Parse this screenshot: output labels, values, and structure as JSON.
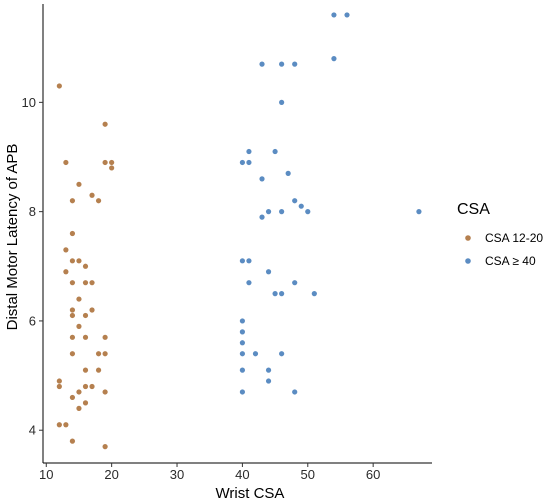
{
  "chart_data": {
    "type": "scatter",
    "title": "",
    "xlabel": "Wrist CSA",
    "ylabel": "Distal Motor Latency of APB",
    "xlim": [
      9.5,
      69
    ],
    "ylim": [
      3.4,
      11.8
    ],
    "x_ticks": [
      10,
      20,
      30,
      40,
      50,
      60
    ],
    "y_ticks": [
      4,
      6,
      8,
      10
    ],
    "grid": false,
    "legend": {
      "title": "CSA",
      "placement": "right",
      "entries": [
        "CSA 12-20",
        "CSA ≥ 40"
      ]
    },
    "series": [
      {
        "name": "CSA 12-20",
        "color": "#b5804f",
        "points": [
          [
            12,
            10.3
          ],
          [
            19,
            9.6
          ],
          [
            13,
            8.9
          ],
          [
            19,
            8.9
          ],
          [
            20,
            8.9
          ],
          [
            20,
            8.8
          ],
          [
            15,
            8.5
          ],
          [
            17,
            8.3
          ],
          [
            14,
            8.2
          ],
          [
            18,
            8.2
          ],
          [
            14,
            7.6
          ],
          [
            13,
            7.3
          ],
          [
            14,
            7.1
          ],
          [
            15,
            7.1
          ],
          [
            16,
            7.0
          ],
          [
            13,
            6.9
          ],
          [
            14,
            6.7
          ],
          [
            16,
            6.7
          ],
          [
            17,
            6.7
          ],
          [
            15,
            6.4
          ],
          [
            14,
            6.2
          ],
          [
            17,
            6.2
          ],
          [
            14,
            6.1
          ],
          [
            16,
            6.1
          ],
          [
            15,
            5.9
          ],
          [
            14,
            5.7
          ],
          [
            16,
            5.7
          ],
          [
            19,
            5.7
          ],
          [
            14,
            5.4
          ],
          [
            18,
            5.4
          ],
          [
            19,
            5.4
          ],
          [
            16,
            5.1
          ],
          [
            18,
            5.1
          ],
          [
            12,
            4.9
          ],
          [
            12,
            4.8
          ],
          [
            16,
            4.8
          ],
          [
            17,
            4.8
          ],
          [
            15,
            4.7
          ],
          [
            19,
            4.7
          ],
          [
            14,
            4.6
          ],
          [
            16,
            4.5
          ],
          [
            15,
            4.4
          ],
          [
            12,
            4.1
          ],
          [
            13,
            4.1
          ],
          [
            14,
            3.8
          ],
          [
            19,
            3.7
          ]
        ]
      },
      {
        "name": "CSA ≥ 40",
        "color": "#5b8cc2",
        "points": [
          [
            54,
            11.6
          ],
          [
            56,
            11.6
          ],
          [
            54,
            10.8
          ],
          [
            43,
            10.7
          ],
          [
            46,
            10.7
          ],
          [
            48,
            10.7
          ],
          [
            46,
            10.0
          ],
          [
            41,
            9.1
          ],
          [
            45,
            9.1
          ],
          [
            40,
            8.9
          ],
          [
            41,
            8.9
          ],
          [
            47,
            8.7
          ],
          [
            43,
            8.6
          ],
          [
            48,
            8.2
          ],
          [
            49,
            8.1
          ],
          [
            44,
            8.0
          ],
          [
            46,
            8.0
          ],
          [
            50,
            8.0
          ],
          [
            67,
            8.0
          ],
          [
            43,
            7.9
          ],
          [
            40,
            7.1
          ],
          [
            41,
            7.1
          ],
          [
            44,
            6.9
          ],
          [
            41,
            6.7
          ],
          [
            48,
            6.7
          ],
          [
            45,
            6.5
          ],
          [
            46,
            6.5
          ],
          [
            51,
            6.5
          ],
          [
            40,
            6.0
          ],
          [
            40,
            5.8
          ],
          [
            40,
            5.6
          ],
          [
            40,
            5.4
          ],
          [
            42,
            5.4
          ],
          [
            46,
            5.4
          ],
          [
            40,
            5.1
          ],
          [
            44,
            5.1
          ],
          [
            44,
            4.9
          ],
          [
            40,
            4.7
          ],
          [
            48,
            4.7
          ]
        ]
      }
    ]
  }
}
